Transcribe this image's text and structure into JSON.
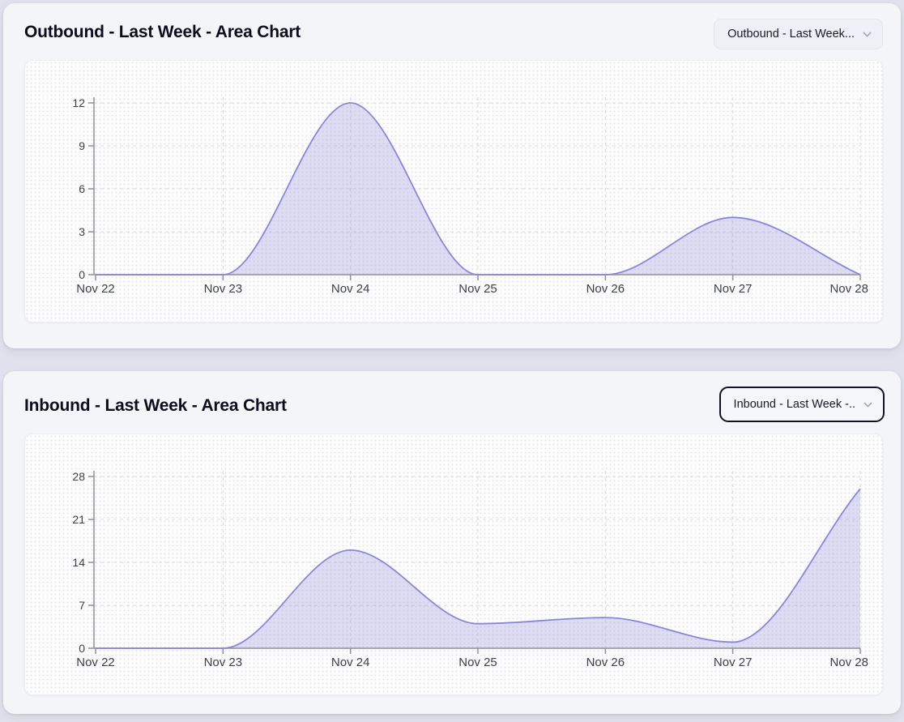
{
  "page": {
    "background": "#dfe2ec"
  },
  "cards": [
    {
      "title": "Outbound - Last Week - Area Chart",
      "dropdown": {
        "label": "Outbound - Last Week...",
        "focused": false
      }
    },
    {
      "title": "Inbound - Last Week - Area Chart",
      "dropdown": {
        "label": "Inbound - Last Week -..",
        "focused": true
      }
    }
  ],
  "chart_data": [
    {
      "type": "area",
      "title": "Outbound - Last Week - Area Chart",
      "categories": [
        "Nov 22",
        "Nov 23",
        "Nov 24",
        "Nov 25",
        "Nov 26",
        "Nov 27",
        "Nov 28"
      ],
      "values": [
        0,
        0,
        12,
        0,
        0,
        4,
        0
      ],
      "xlabel": "",
      "ylabel": "",
      "yticks": [
        0,
        3,
        6,
        9,
        12
      ],
      "ylim": [
        0,
        12
      ],
      "grid": true,
      "smooth": true,
      "legend": false,
      "colors": {
        "stroke": "#8b86d8",
        "fill": "rgba(136,132,216,0.27)",
        "axis": "#909298",
        "gridline": "#d9dade"
      }
    },
    {
      "type": "area",
      "title": "Inbound - Last Week - Area Chart",
      "categories": [
        "Nov 22",
        "Nov 23",
        "Nov 24",
        "Nov 25",
        "Nov 26",
        "Nov 27",
        "Nov 28"
      ],
      "values": [
        0,
        0,
        16,
        4,
        5,
        1,
        26
      ],
      "xlabel": "",
      "ylabel": "",
      "yticks": [
        0,
        7,
        14,
        21,
        28
      ],
      "ylim": [
        0,
        28
      ],
      "grid": true,
      "smooth": true,
      "legend": false,
      "colors": {
        "stroke": "#8b86d8",
        "fill": "rgba(136,132,216,0.27)",
        "axis": "#909298",
        "gridline": "#d9dade"
      }
    }
  ]
}
